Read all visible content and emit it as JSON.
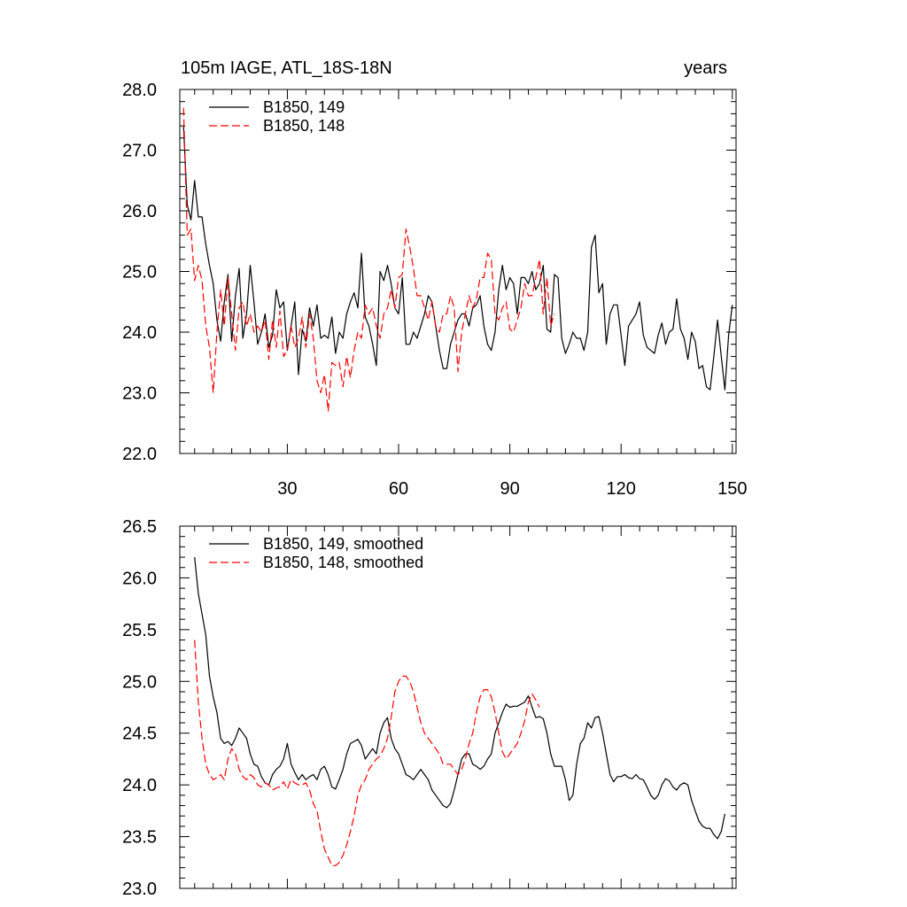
{
  "chart_data": [
    {
      "type": "line",
      "title_left": "105m IAGE, ATL_18S-18N",
      "title_right": "years",
      "xlim": [
        1,
        151
      ],
      "ylim": [
        22.0,
        28.0
      ],
      "x_ticks": [
        30,
        60,
        90,
        120,
        150
      ],
      "y_ticks": [
        "22.0",
        "23.0",
        "24.0",
        "25.0",
        "26.0",
        "27.0",
        "28.0"
      ],
      "legend_position": "top-left",
      "grid": false,
      "series": [
        {
          "name": "B1850, 149",
          "color": "#000000",
          "dash": "solid",
          "x_start": 2,
          "values": [
            27.4,
            26.1,
            25.85,
            26.5,
            25.9,
            25.9,
            25.45,
            25.1,
            24.8,
            24.2,
            23.85,
            24.5,
            24.95,
            23.85,
            24.6,
            25.05,
            23.9,
            24.3,
            25.1,
            24.5,
            23.8,
            24.0,
            24.3,
            23.75,
            23.95,
            24.7,
            24.4,
            24.5,
            23.7,
            24.1,
            24.5,
            23.3,
            24.05,
            23.85,
            24.4,
            24.1,
            24.45,
            23.9,
            23.95,
            23.9,
            24.25,
            23.65,
            24.0,
            23.9,
            24.3,
            24.5,
            24.65,
            24.4,
            25.3,
            24.25,
            24.1,
            23.8,
            23.45,
            25.0,
            24.85,
            25.1,
            24.8,
            24.4,
            24.3,
            24.9,
            23.8,
            23.8,
            24.0,
            23.9,
            24.1,
            24.3,
            24.6,
            24.5,
            24.1,
            23.7,
            23.4,
            23.4,
            23.8,
            24.0,
            24.2,
            24.3,
            24.3,
            24.1,
            24.4,
            24.45,
            24.6,
            24.1,
            23.8,
            23.7,
            24.0,
            24.7,
            25.1,
            24.7,
            24.9,
            24.8,
            24.3,
            24.9,
            24.9,
            24.8,
            25.0,
            24.7,
            24.8,
            25.1,
            24.05,
            24.0,
            24.95,
            24.9,
            23.9,
            23.65,
            23.8,
            24.0,
            23.9,
            23.9,
            23.7,
            24.0,
            25.4,
            25.6,
            24.65,
            24.8,
            23.8,
            24.3,
            24.45,
            24.45,
            23.95,
            23.45,
            24.1,
            24.2,
            24.3,
            24.5,
            23.95,
            23.75,
            23.7,
            23.65,
            23.95,
            24.15,
            23.8,
            24.0,
            24.05,
            24.55,
            24.05,
            23.9,
            23.55,
            24.0,
            23.85,
            23.4,
            23.45,
            23.1,
            23.05,
            23.6,
            24.2,
            23.6,
            23.05,
            23.95,
            24.45
          ]
        },
        {
          "name": "B1850, 148",
          "color": "#ff0000",
          "dash": "dashed",
          "x_start": 2,
          "values": [
            27.7,
            25.6,
            25.7,
            24.85,
            25.1,
            24.85,
            24.1,
            23.75,
            23.0,
            24.0,
            24.7,
            24.1,
            24.9,
            24.3,
            23.7,
            24.4,
            24.5,
            24.1,
            24.3,
            24.0,
            24.1,
            24.0,
            24.2,
            23.55,
            24.2,
            23.75,
            24.35,
            23.6,
            23.7,
            24.1,
            23.75,
            23.9,
            24.25,
            23.75,
            24.3,
            23.9,
            23.2,
            23.0,
            23.3,
            22.7,
            23.5,
            23.45,
            23.5,
            23.1,
            23.6,
            23.25,
            23.7,
            24.0,
            23.9,
            24.45,
            24.3,
            24.4,
            24.1,
            23.9,
            24.3,
            24.4,
            24.7,
            24.4,
            24.9,
            24.95,
            25.7,
            25.4,
            25.05,
            24.6,
            24.6,
            24.4,
            24.2,
            24.5,
            24.1,
            24.0,
            24.3,
            24.3,
            24.6,
            24.4,
            23.35,
            24.0,
            24.3,
            24.6,
            24.4,
            24.55,
            24.9,
            24.9,
            25.3,
            25.2,
            24.3,
            24.2,
            24.4,
            24.5,
            24.05,
            24.0,
            24.2,
            24.4,
            24.8,
            24.6,
            24.6,
            24.9,
            25.2,
            24.3,
            24.9,
            24.1,
            24.3
          ]
        }
      ]
    },
    {
      "type": "line",
      "xlim": [
        1,
        151
      ],
      "ylim": [
        23.0,
        26.5
      ],
      "x_ticks": [
        30,
        60,
        90,
        120,
        150
      ],
      "y_ticks": [
        "23.0",
        "23.5",
        "24.0",
        "24.5",
        "25.0",
        "25.5",
        "26.0",
        "26.5"
      ],
      "legend_position": "top-left",
      "grid": false,
      "series": [
        {
          "name": "B1850, 149, smoothed",
          "color": "#000000",
          "dash": "solid",
          "x_start": 5,
          "values": [
            26.2,
            25.85,
            25.65,
            25.45,
            25.05,
            24.85,
            24.7,
            24.45,
            24.4,
            24.42,
            24.38,
            24.45,
            24.55,
            24.5,
            24.45,
            24.3,
            24.2,
            24.18,
            24.08,
            24.02,
            24.0,
            24.1,
            24.15,
            24.18,
            24.25,
            24.4,
            24.2,
            24.12,
            24.05,
            24.1,
            24.05,
            24.08,
            24.1,
            24.05,
            24.15,
            24.18,
            24.1,
            23.98,
            23.96,
            24.05,
            24.15,
            24.3,
            24.4,
            24.42,
            24.44,
            24.38,
            24.25,
            24.3,
            24.35,
            24.3,
            24.5,
            24.6,
            24.65,
            24.45,
            24.35,
            24.3,
            24.2,
            24.1,
            24.08,
            24.05,
            24.1,
            24.15,
            24.1,
            24.05,
            23.95,
            23.9,
            23.85,
            23.8,
            23.78,
            23.82,
            23.95,
            24.1,
            24.25,
            24.3,
            24.3,
            24.2,
            24.18,
            24.15,
            24.18,
            24.25,
            24.3,
            24.5,
            24.6,
            24.7,
            24.78,
            24.75,
            24.76,
            24.76,
            24.78,
            24.8,
            24.86,
            24.75,
            24.65,
            24.66,
            24.64,
            24.5,
            24.3,
            24.18,
            24.18,
            24.18,
            24.05,
            23.85,
            23.9,
            24.2,
            24.4,
            24.45,
            24.6,
            24.55,
            24.65,
            24.66,
            24.5,
            24.3,
            24.1,
            24.03,
            24.08,
            24.08,
            24.1,
            24.07,
            24.06,
            24.1,
            24.06,
            24.05,
            23.98,
            23.9,
            23.86,
            23.9,
            24.0,
            24.06,
            24.04,
            23.98,
            23.95,
            24.0,
            24.02,
            24.0,
            23.85,
            23.75,
            23.65,
            23.6,
            23.58,
            23.58,
            23.52,
            23.48,
            23.55,
            23.72
          ]
        },
        {
          "name": "B1850, 148, smoothed",
          "color": "#ff0000",
          "dash": "dashed",
          "x_start": 5,
          "values": [
            25.4,
            24.8,
            24.45,
            24.2,
            24.1,
            24.05,
            24.07,
            24.1,
            24.05,
            24.25,
            24.35,
            24.3,
            24.15,
            24.08,
            24.05,
            24.1,
            24.07,
            24.0,
            23.98,
            24.02,
            24.0,
            23.95,
            23.97,
            23.98,
            24.03,
            23.96,
            24.05,
            24.02,
            24.0,
            24.0,
            24.02,
            23.95,
            23.82,
            23.75,
            23.55,
            23.38,
            23.3,
            23.22,
            23.22,
            23.25,
            23.32,
            23.42,
            23.55,
            23.7,
            23.9,
            24.0,
            24.05,
            24.15,
            24.2,
            24.25,
            24.28,
            24.35,
            24.45,
            24.65,
            24.9,
            25.0,
            25.05,
            25.05,
            25.0,
            24.9,
            24.75,
            24.6,
            24.5,
            24.45,
            24.4,
            24.35,
            24.3,
            24.2,
            24.2,
            24.2,
            24.15,
            24.1,
            24.15,
            24.25,
            24.4,
            24.5,
            24.7,
            24.85,
            24.92,
            24.92,
            24.85,
            24.7,
            24.5,
            24.32,
            24.25,
            24.3,
            24.35,
            24.4,
            24.5,
            24.62,
            24.8,
            24.88,
            24.82,
            24.75
          ]
        }
      ]
    }
  ]
}
